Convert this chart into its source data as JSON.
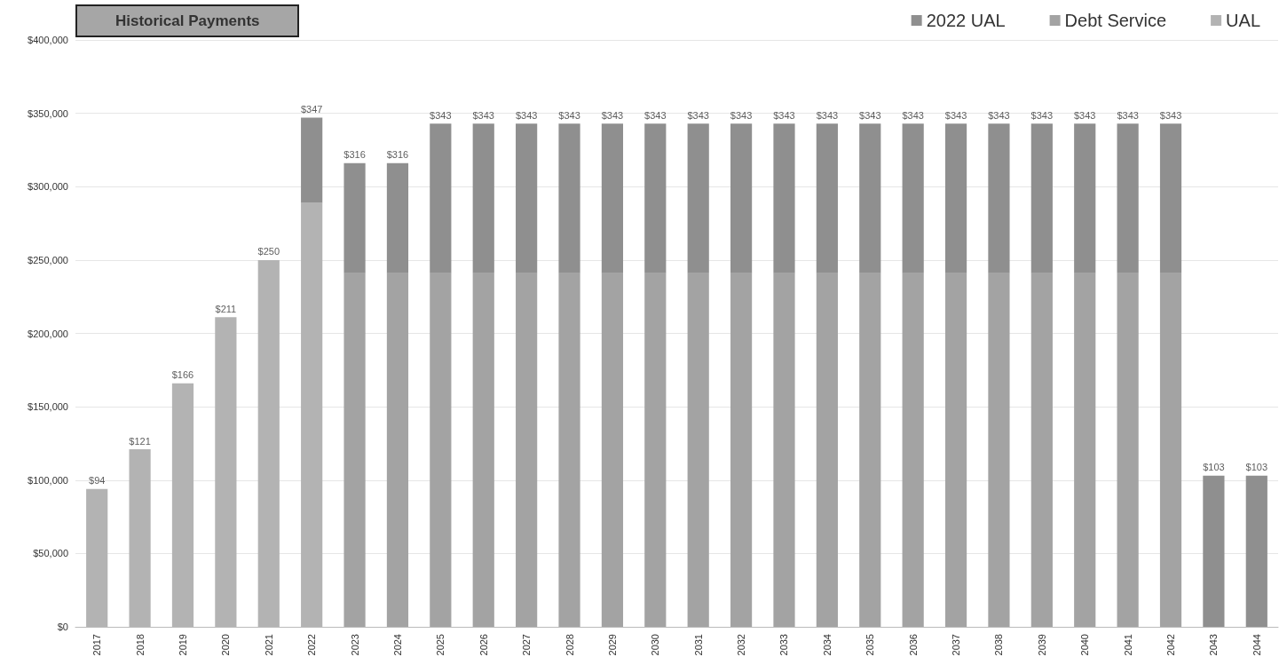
{
  "chart_data": {
    "type": "bar",
    "title": "Historical Payments",
    "stacked": true,
    "categories": [
      "2017",
      "2018",
      "2019",
      "2020",
      "2021",
      "2022",
      "2023",
      "2024",
      "2025",
      "2026",
      "2027",
      "2028",
      "2029",
      "2030",
      "2031",
      "2032",
      "2033",
      "2034",
      "2035",
      "2036",
      "2037",
      "2038",
      "2039",
      "2040",
      "2041",
      "2042",
      "2043",
      "2044"
    ],
    "series": [
      {
        "name": "UAL",
        "color": "#b3b3b3",
        "values": [
          94000,
          121000,
          166000,
          211000,
          250000,
          289000,
          null,
          null,
          null,
          null,
          null,
          null,
          null,
          null,
          null,
          null,
          null,
          null,
          null,
          null,
          null,
          null,
          null,
          null,
          null,
          null,
          null,
          null
        ]
      },
      {
        "name": "Debt Service",
        "color": "#a3a3a3",
        "values": [
          null,
          null,
          null,
          null,
          null,
          null,
          241000,
          241000,
          241000,
          241000,
          241000,
          241000,
          241000,
          241000,
          241000,
          241000,
          241000,
          241000,
          241000,
          241000,
          241000,
          241000,
          241000,
          241000,
          241000,
          241000,
          null,
          null
        ]
      },
      {
        "name": "2022 UAL",
        "color": "#8f8f8f",
        "values": [
          null,
          null,
          null,
          null,
          null,
          58000,
          75000,
          75000,
          102000,
          102000,
          102000,
          102000,
          102000,
          102000,
          102000,
          102000,
          102000,
          102000,
          102000,
          102000,
          102000,
          102000,
          102000,
          102000,
          102000,
          102000,
          103000,
          103000
        ]
      }
    ],
    "annotations": [
      {
        "text": "$94",
        "x": "2017",
        "y": 94000
      },
      {
        "text": "$121",
        "x": "2018",
        "y": 121000
      },
      {
        "text": "$166",
        "x": "2019",
        "y": 166000
      },
      {
        "text": "$211",
        "x": "2020",
        "y": 211000
      },
      {
        "text": "$250",
        "x": "2021",
        "y": 250000
      },
      {
        "text": "$347",
        "x": "2022",
        "y": 347000
      },
      {
        "text": "$316",
        "x": "2023",
        "y": 316000
      },
      {
        "text": "$316",
        "x": "2024",
        "y": 316000
      },
      {
        "text": "$343",
        "x": "2025",
        "y": 343000
      },
      {
        "text": "$343",
        "x": "2026",
        "y": 343000
      },
      {
        "text": "$343",
        "x": "2027",
        "y": 343000
      },
      {
        "text": "$343",
        "x": "2028",
        "y": 343000
      },
      {
        "text": "$343",
        "x": "2029",
        "y": 343000
      },
      {
        "text": "$343",
        "x": "2030",
        "y": 343000
      },
      {
        "text": "$343",
        "x": "2031",
        "y": 343000
      },
      {
        "text": "$343",
        "x": "2032",
        "y": 343000
      },
      {
        "text": "$343",
        "x": "2033",
        "y": 343000
      },
      {
        "text": "$343",
        "x": "2034",
        "y": 343000
      },
      {
        "text": "$343",
        "x": "2035",
        "y": 343000
      },
      {
        "text": "$343",
        "x": "2036",
        "y": 343000
      },
      {
        "text": "$343",
        "x": "2037",
        "y": 343000
      },
      {
        "text": "$343",
        "x": "2038",
        "y": 343000
      },
      {
        "text": "$343",
        "x": "2039",
        "y": 343000
      },
      {
        "text": "$343",
        "x": "2040",
        "y": 343000
      },
      {
        "text": "$343",
        "x": "2041",
        "y": 343000
      },
      {
        "text": "$343",
        "x": "2042",
        "y": 343000
      },
      {
        "text": "$103",
        "x": "2043",
        "y": 103000
      },
      {
        "text": "$103",
        "x": "2044",
        "y": 103000
      }
    ],
    "ylim": [
      0,
      400000
    ],
    "yticks": [
      {
        "value": 0,
        "label": "$0"
      },
      {
        "value": 50000,
        "label": "$50,000"
      },
      {
        "value": 100000,
        "label": "$100,000"
      },
      {
        "value": 150000,
        "label": "$150,000"
      },
      {
        "value": 200000,
        "label": "$200,000"
      },
      {
        "value": 250000,
        "label": "$250,000"
      },
      {
        "value": 300000,
        "label": "$300,000"
      },
      {
        "value": 350000,
        "label": "$350,000"
      },
      {
        "value": 400000,
        "label": "$400,000"
      }
    ],
    "grid": "y",
    "legend": "top right"
  }
}
